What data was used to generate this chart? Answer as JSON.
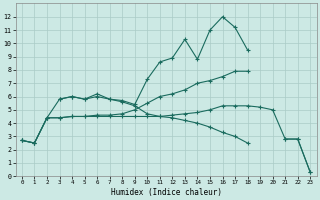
{
  "xlabel": "Humidex (Indice chaleur)",
  "xlim": [
    -0.5,
    23.5
  ],
  "ylim": [
    0,
    13
  ],
  "xticks": [
    0,
    1,
    2,
    3,
    4,
    5,
    6,
    7,
    8,
    9,
    10,
    11,
    12,
    13,
    14,
    15,
    16,
    17,
    18,
    19,
    20,
    21,
    22,
    23
  ],
  "yticks": [
    0,
    1,
    2,
    3,
    4,
    5,
    6,
    7,
    8,
    9,
    10,
    11,
    12
  ],
  "bg_color": "#cce9e4",
  "line_color": "#1a6b5e",
  "grid_color": "#aaccc7",
  "lines": [
    {
      "x": [
        0,
        1,
        2,
        3,
        4,
        5,
        6,
        7,
        8,
        9,
        10,
        11,
        12,
        13,
        14,
        15,
        16,
        17,
        18,
        19,
        20,
        21,
        22,
        23
      ],
      "y": [
        2.7,
        2.5,
        4.4,
        5.8,
        6.0,
        5.8,
        6.2,
        5.8,
        5.7,
        5.4,
        7.3,
        8.6,
        8.9,
        10.3,
        8.8,
        11.0,
        12.0,
        11.2,
        9.5,
        null,
        null,
        null,
        null,
        null
      ]
    },
    {
      "x": [
        0,
        1,
        2,
        3,
        4,
        5,
        6,
        7,
        8,
        9,
        10,
        11,
        12,
        13,
        14,
        15,
        16,
        17,
        18,
        19,
        20,
        21,
        22,
        23
      ],
      "y": [
        2.7,
        2.5,
        4.4,
        4.4,
        4.5,
        4.5,
        4.6,
        4.6,
        4.7,
        5.0,
        5.5,
        6.0,
        6.2,
        6.5,
        7.0,
        7.2,
        7.5,
        7.9,
        7.9,
        null,
        null,
        null,
        null,
        null
      ]
    },
    {
      "x": [
        0,
        1,
        2,
        3,
        4,
        5,
        6,
        7,
        8,
        9,
        10,
        11,
        12,
        13,
        14,
        15,
        16,
        17,
        18,
        19,
        20,
        21,
        22,
        23
      ],
      "y": [
        2.7,
        2.5,
        4.4,
        4.4,
        4.5,
        4.5,
        4.5,
        4.5,
        4.5,
        4.5,
        4.5,
        4.5,
        4.6,
        4.7,
        4.8,
        5.0,
        5.3,
        5.3,
        5.3,
        5.2,
        5.0,
        2.8,
        2.8,
        0.3
      ]
    },
    {
      "x": [
        0,
        1,
        2,
        3,
        4,
        5,
        6,
        7,
        8,
        9,
        10,
        11,
        12,
        13,
        14,
        15,
        16,
        17,
        18,
        19,
        20,
        21,
        22,
        23
      ],
      "y": [
        null,
        null,
        null,
        5.8,
        6.0,
        5.8,
        6.0,
        5.8,
        5.6,
        5.3,
        4.7,
        4.5,
        4.4,
        4.2,
        4.0,
        3.7,
        3.3,
        3.0,
        2.5,
        null,
        null,
        2.8,
        2.8,
        0.3
      ]
    }
  ]
}
